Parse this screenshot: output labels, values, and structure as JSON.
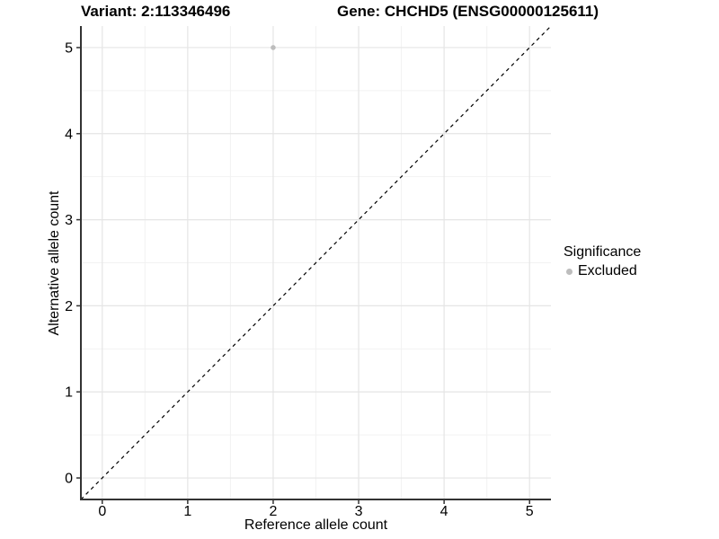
{
  "titles": {
    "variant": "Variant: 2:113346496",
    "gene": "Gene: CHCHD5 (ENSG00000125611)"
  },
  "legend": {
    "title": "Significance",
    "items": [
      {
        "label": "Excluded",
        "color": "#bdbdbd"
      }
    ]
  },
  "chart_data": {
    "type": "scatter",
    "title_left": "Variant: 2:113346496",
    "title_right": "Gene: CHCHD5 (ENSG00000125611)",
    "xlabel": "Reference allele count",
    "ylabel": "Alternative allele count",
    "xlim": [
      -0.25,
      5.25
    ],
    "ylim": [
      -0.25,
      5.25
    ],
    "x_ticks": [
      0,
      1,
      2,
      3,
      4,
      5
    ],
    "y_ticks": [
      0,
      1,
      2,
      3,
      4,
      5
    ],
    "x_minor": [
      0.5,
      1.5,
      2.5,
      3.5,
      4.5
    ],
    "y_minor": [
      0.5,
      1.5,
      2.5,
      3.5,
      4.5
    ],
    "grid": "major and minor gridlines on white panel",
    "legend_position": "right",
    "series": [
      {
        "name": "Excluded",
        "color": "#bdbdbd",
        "points": [
          {
            "x": 2,
            "y": 5
          }
        ]
      }
    ],
    "reference_line": {
      "type": "identity y=x",
      "style": "dashed",
      "color": "#000000"
    }
  },
  "colors": {
    "background": "#ffffff",
    "grid_major": "#e5e5e5",
    "grid_minor": "#f2f2f2",
    "axis_line": "#333333",
    "tick": "#333333",
    "text": "#000000",
    "point": "#bdbdbd"
  }
}
